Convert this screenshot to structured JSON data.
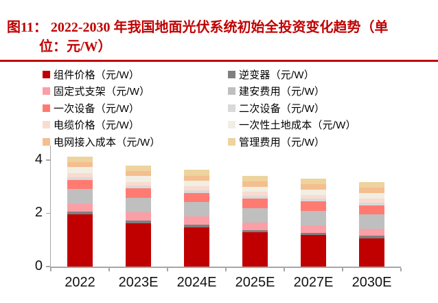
{
  "title": {
    "line1": "图11：  2022-2030 年我国地面光伏系统初始全投资变化趋势（单",
    "line2": "位：元/W）",
    "color": "#C00000"
  },
  "divider": {
    "color": "#C00000"
  },
  "chart_data": {
    "type": "bar",
    "stacked": true,
    "title": "2022-2030 年我国地面光伏系统初始全投资变化趋势",
    "unit": "元/W",
    "categories": [
      "2022",
      "2023E",
      "2024E",
      "2025E",
      "2027E",
      "2030E"
    ],
    "series": [
      {
        "name": "组件价格（元/W）",
        "color": "#C00000",
        "values": [
          1.95,
          1.63,
          1.48,
          1.28,
          1.18,
          1.06
        ]
      },
      {
        "name": "逆变器（元/W）",
        "color": "#7F7F7F",
        "values": [
          0.1,
          0.1,
          0.1,
          0.09,
          0.09,
          0.09
        ]
      },
      {
        "name": "固定式支架（元/W）",
        "color": "#FC9EA6",
        "values": [
          0.3,
          0.3,
          0.29,
          0.28,
          0.28,
          0.27
        ]
      },
      {
        "name": "建安费用（元/W）",
        "color": "#BFBFBF",
        "values": [
          0.55,
          0.55,
          0.55,
          0.54,
          0.53,
          0.53
        ]
      },
      {
        "name": "一次设备（元/W）",
        "color": "#FF7B72",
        "values": [
          0.35,
          0.35,
          0.35,
          0.36,
          0.36,
          0.35
        ]
      },
      {
        "name": "二次设备（元/W）",
        "color": "#D9D9D9",
        "values": [
          0.1,
          0.1,
          0.1,
          0.1,
          0.1,
          0.1
        ]
      },
      {
        "name": "电缆价格（元/W）",
        "color": "#FADBD0",
        "values": [
          0.16,
          0.15,
          0.15,
          0.15,
          0.15,
          0.15
        ]
      },
      {
        "name": "一次性土地成本（元/W）",
        "color": "#F1EEE3",
        "values": [
          0.22,
          0.21,
          0.2,
          0.2,
          0.2,
          0.21
        ]
      },
      {
        "name": "电网接入成本（元/W）",
        "color": "#F5BE8E",
        "values": [
          0.2,
          0.2,
          0.19,
          0.19,
          0.19,
          0.2
        ]
      },
      {
        "name": "管理费用（元/W）",
        "color": "#EDD39D",
        "values": [
          0.2,
          0.21,
          0.22,
          0.21,
          0.22,
          0.2
        ]
      }
    ],
    "totals": [
      4.13,
      3.8,
      3.63,
      3.4,
      3.3,
      3.16
    ],
    "y_axis": {
      "tick_labels": [
        "0",
        "2",
        "4"
      ],
      "tick_values": [
        0,
        2,
        4
      ],
      "min": 0,
      "max": 4.3
    },
    "legend_position": "top, two columns (left: even series, right: odd series)",
    "grid": false,
    "axis_color": "#A6A6A6"
  }
}
